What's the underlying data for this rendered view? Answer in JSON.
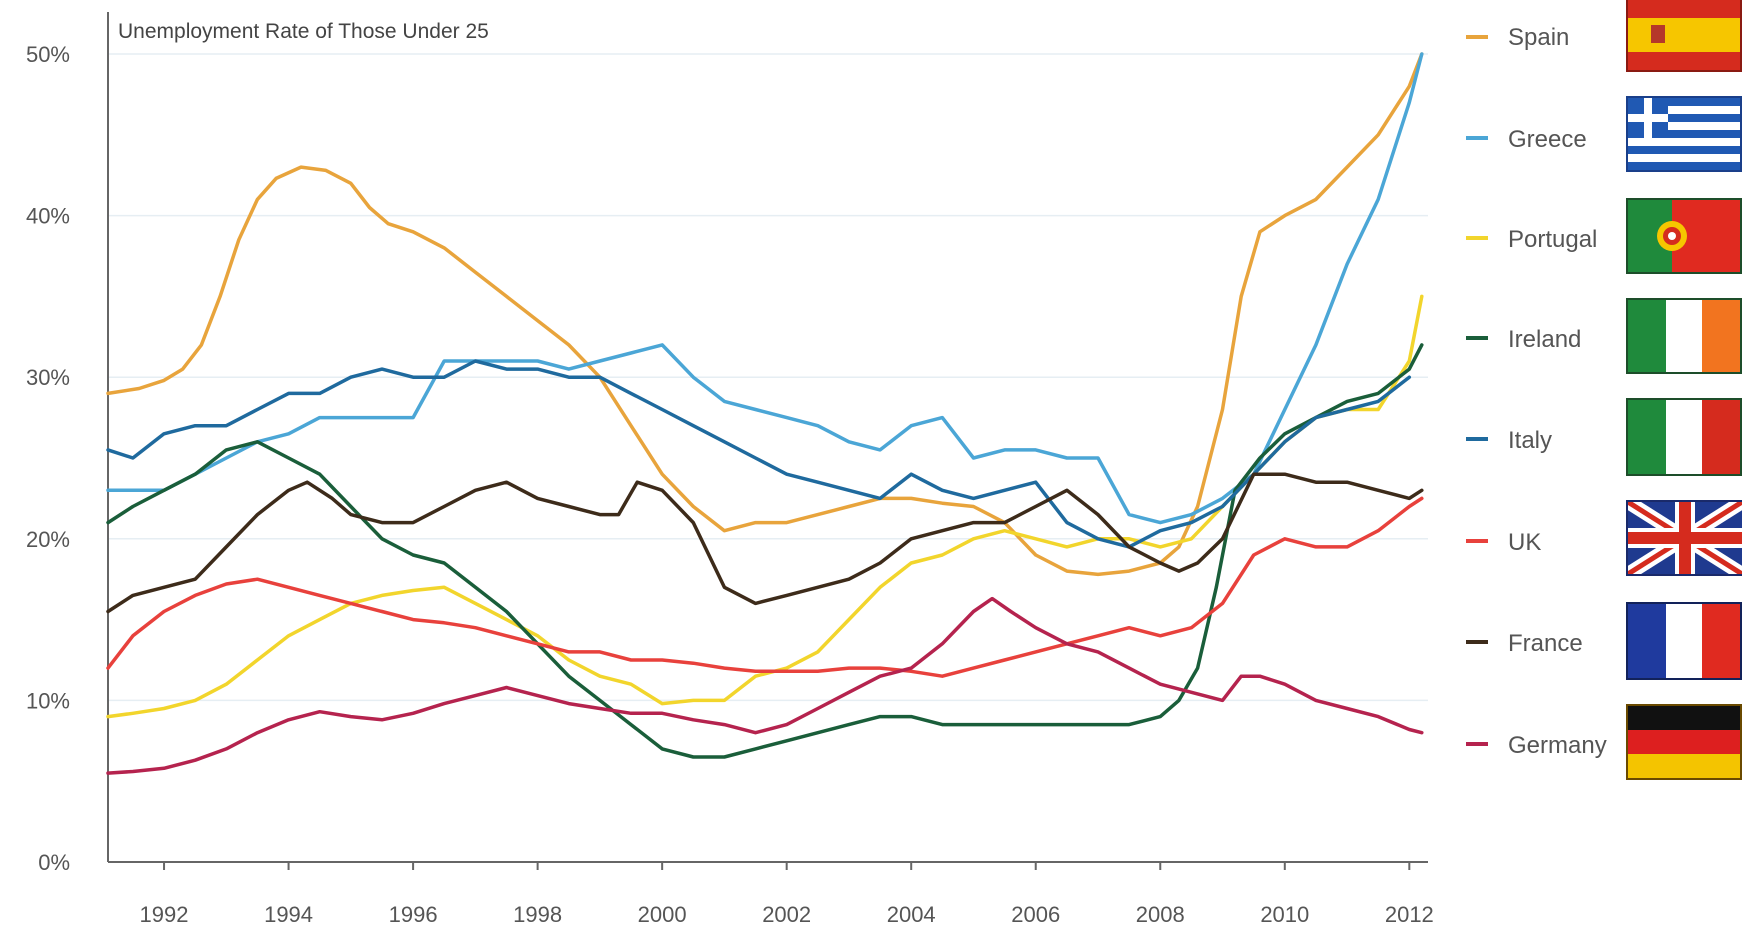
{
  "chart_data": {
    "type": "line",
    "title": "Unemployment Rate of Those Under 25",
    "xlabel": "",
    "ylabel": "",
    "xlim": [
      1991.1,
      2012.3
    ],
    "ylim": [
      0,
      50
    ],
    "y_ticks": [
      "0%",
      "10%",
      "20%",
      "30%",
      "40%",
      "50%"
    ],
    "y_tick_values": [
      0,
      10,
      20,
      30,
      40,
      50
    ],
    "x_ticks": [
      "1992",
      "1994",
      "1996",
      "1998",
      "2000",
      "2002",
      "2004",
      "2006",
      "2008",
      "2010",
      "2012"
    ],
    "x_tick_values": [
      1992,
      1994,
      1996,
      1998,
      2000,
      2002,
      2004,
      2006,
      2008,
      2010,
      2012
    ],
    "grid": "horizontal",
    "legend_position": "right",
    "series": [
      {
        "name": "Spain",
        "color": "#e8a43c",
        "flag": "spain-flag-icon",
        "x": [
          1991.1,
          1991.6,
          1992.0,
          1992.3,
          1992.6,
          1992.9,
          1993.2,
          1993.5,
          1993.8,
          1994.2,
          1994.6,
          1995.0,
          1995.3,
          1995.6,
          1996.0,
          1996.5,
          1997.0,
          1997.5,
          1998.0,
          1998.5,
          1999.0,
          1999.5,
          2000.0,
          2000.5,
          2001.0,
          2001.5,
          2002.0,
          2002.5,
          2003.0,
          2003.5,
          2004.0,
          2004.5,
          2005.0,
          2005.5,
          2006.0,
          2006.5,
          2007.0,
          2007.5,
          2008.0,
          2008.3,
          2008.6,
          2009.0,
          2009.3,
          2009.6,
          2010.0,
          2010.5,
          2011.0,
          2011.5,
          2012.0,
          2012.2
        ],
        "y": [
          29,
          29.3,
          29.8,
          30.5,
          32,
          35,
          38.5,
          41,
          42.3,
          43,
          42.8,
          42,
          40.5,
          39.5,
          39,
          38,
          36.5,
          35,
          33.5,
          32,
          30,
          27,
          24,
          22,
          20.5,
          21,
          21,
          21.5,
          22,
          22.5,
          22.5,
          22.2,
          22,
          21,
          19,
          18,
          17.8,
          18,
          18.5,
          19.5,
          22,
          28,
          35,
          39,
          40,
          41,
          43,
          45,
          48,
          50
        ]
      },
      {
        "name": "Greece",
        "color": "#4ba6d6",
        "flag": "greece-flag-icon",
        "x": [
          1991.1,
          1991.6,
          1992.0,
          1992.5,
          1993.0,
          1993.5,
          1994.0,
          1994.5,
          1995.0,
          1995.5,
          1996.0,
          1996.5,
          1997.0,
          1997.5,
          1998.0,
          1998.5,
          1999.0,
          1999.5,
          2000.0,
          2000.5,
          2001.0,
          2001.5,
          2002.0,
          2002.5,
          2003.0,
          2003.5,
          2004.0,
          2004.5,
          2005.0,
          2005.5,
          2006.0,
          2006.5,
          2007.0,
          2007.5,
          2008.0,
          2008.5,
          2009.0,
          2009.5,
          2010.0,
          2010.5,
          2011.0,
          2011.5,
          2012.0,
          2012.2
        ],
        "y": [
          23,
          23,
          23,
          24,
          25,
          26,
          26.5,
          27.5,
          27.5,
          27.5,
          27.5,
          31,
          31,
          31,
          31,
          30.5,
          31,
          31.5,
          32,
          30,
          28.5,
          28,
          27.5,
          27,
          26,
          25.5,
          27,
          27.5,
          25,
          25.5,
          25.5,
          25,
          25,
          21.5,
          21,
          21.5,
          22.5,
          24,
          28,
          32,
          37,
          41,
          47,
          50
        ]
      },
      {
        "name": "Portugal",
        "color": "#f2d52c",
        "flag": "portugal-flag-icon",
        "x": [
          1991.1,
          1991.5,
          1992.0,
          1992.5,
          1993.0,
          1993.5,
          1994.0,
          1994.5,
          1995.0,
          1995.5,
          1996.0,
          1996.5,
          1997.0,
          1997.5,
          1998.0,
          1998.5,
          1999.0,
          1999.5,
          2000.0,
          2000.5,
          2001.0,
          2001.5,
          2002.0,
          2002.5,
          2003.0,
          2003.5,
          2004.0,
          2004.5,
          2005.0,
          2005.5,
          2006.0,
          2006.5,
          2007.0,
          2007.5,
          2008.0,
          2008.5,
          2009.0,
          2009.5,
          2010.0,
          2010.5,
          2011.0,
          2011.5,
          2012.0,
          2012.2
        ],
        "y": [
          9,
          9.2,
          9.5,
          10,
          11,
          12.5,
          14,
          15,
          16,
          16.5,
          16.8,
          17,
          16,
          15,
          14,
          12.5,
          11.5,
          11,
          9.8,
          10,
          10,
          11.5,
          12,
          13,
          15,
          17,
          18.5,
          19,
          20,
          20.5,
          20,
          19.5,
          20,
          20,
          19.5,
          20,
          22,
          24,
          26,
          27.5,
          28,
          28,
          31,
          35
        ]
      },
      {
        "name": "Ireland",
        "color": "#1a5e3a",
        "flag": "ireland-flag-icon",
        "x": [
          1991.1,
          1991.5,
          1992.0,
          1992.5,
          1993.0,
          1993.5,
          1994.0,
          1994.5,
          1995.0,
          1995.5,
          1996.0,
          1996.5,
          1997.0,
          1997.5,
          1998.0,
          1998.5,
          1999.0,
          1999.5,
          2000.0,
          2000.5,
          2001.0,
          2001.5,
          2002.0,
          2002.5,
          2003.0,
          2003.5,
          2004.0,
          2004.5,
          2005.0,
          2005.5,
          2006.0,
          2006.5,
          2007.0,
          2007.5,
          2008.0,
          2008.3,
          2008.6,
          2008.9,
          2009.2,
          2009.6,
          2010.0,
          2010.5,
          2011.0,
          2011.5,
          2012.0,
          2012.2
        ],
        "y": [
          21,
          22,
          23,
          24,
          25.5,
          26,
          25,
          24,
          22,
          20,
          19,
          18.5,
          17,
          15.5,
          13.5,
          11.5,
          10,
          8.5,
          7,
          6.5,
          6.5,
          7,
          7.5,
          8,
          8.5,
          9,
          9,
          8.5,
          8.5,
          8.5,
          8.5,
          8.5,
          8.5,
          8.5,
          9,
          10,
          12,
          17,
          23,
          25,
          26.5,
          27.5,
          28.5,
          29,
          30.5,
          32
        ]
      },
      {
        "name": "Italy",
        "color": "#1f6a9e",
        "flag": "italy-flag-icon",
        "x": [
          1991.1,
          1991.5,
          1992.0,
          1992.5,
          1993.0,
          1993.5,
          1994.0,
          1994.5,
          1995.0,
          1995.5,
          1996.0,
          1996.5,
          1997.0,
          1997.5,
          1998.0,
          1998.5,
          1999.0,
          1999.5,
          2000.0,
          2000.5,
          2001.0,
          2001.5,
          2002.0,
          2002.5,
          2003.0,
          2003.5,
          2004.0,
          2004.5,
          2005.0,
          2005.5,
          2006.0,
          2006.5,
          2007.0,
          2007.5,
          2008.0,
          2008.5,
          2009.0,
          2009.5,
          2010.0,
          2010.5,
          2011.0,
          2011.5,
          2012.0
        ],
        "y": [
          25.5,
          25,
          26.5,
          27,
          27,
          28,
          29,
          29,
          30,
          30.5,
          30,
          30,
          31,
          30.5,
          30.5,
          30,
          30,
          29,
          28,
          27,
          26,
          25,
          24,
          23.5,
          23,
          22.5,
          24,
          23,
          22.5,
          23,
          23.5,
          21,
          20,
          19.5,
          20.5,
          21,
          22,
          24,
          26,
          27.5,
          28,
          28.5,
          30
        ]
      },
      {
        "name": "UK",
        "color": "#e8413c",
        "flag": "uk-flag-icon",
        "x": [
          1991.1,
          1991.5,
          1992.0,
          1992.5,
          1993.0,
          1993.5,
          1994.0,
          1994.5,
          1995.0,
          1995.5,
          1996.0,
          1996.5,
          1997.0,
          1997.5,
          1998.0,
          1998.5,
          1999.0,
          1999.5,
          2000.0,
          2000.5,
          2001.0,
          2001.5,
          2002.0,
          2002.5,
          2003.0,
          2003.5,
          2004.0,
          2004.5,
          2005.0,
          2005.5,
          2006.0,
          2006.5,
          2007.0,
          2007.5,
          2008.0,
          2008.5,
          2009.0,
          2009.5,
          2010.0,
          2010.5,
          2011.0,
          2011.5,
          2012.0,
          2012.2
        ],
        "y": [
          12,
          14,
          15.5,
          16.5,
          17.2,
          17.5,
          17,
          16.5,
          16,
          15.5,
          15,
          14.8,
          14.5,
          14,
          13.5,
          13,
          13,
          12.5,
          12.5,
          12.3,
          12,
          11.8,
          11.8,
          11.8,
          12,
          12,
          11.8,
          11.5,
          12,
          12.5,
          13,
          13.5,
          14,
          14.5,
          14,
          14.5,
          16,
          19,
          20,
          19.5,
          19.5,
          20.5,
          22,
          22.5
        ]
      },
      {
        "name": "France",
        "color": "#3d2b1a",
        "flag": "france-flag-icon",
        "x": [
          1991.1,
          1991.5,
          1992.0,
          1992.5,
          1993.0,
          1993.5,
          1994.0,
          1994.3,
          1994.7,
          1995.0,
          1995.5,
          1996.0,
          1996.5,
          1997.0,
          1997.5,
          1998.0,
          1998.5,
          1999.0,
          1999.3,
          1999.6,
          2000.0,
          2000.5,
          2001.0,
          2001.5,
          2002.0,
          2002.5,
          2003.0,
          2003.5,
          2004.0,
          2004.5,
          2005.0,
          2005.5,
          2006.0,
          2006.5,
          2007.0,
          2007.5,
          2008.0,
          2008.3,
          2008.6,
          2009.0,
          2009.5,
          2010.0,
          2010.5,
          2011.0,
          2011.5,
          2012.0,
          2012.2
        ],
        "y": [
          15.5,
          16.5,
          17,
          17.5,
          19.5,
          21.5,
          23,
          23.5,
          22.5,
          21.5,
          21,
          21,
          22,
          23,
          23.5,
          22.5,
          22,
          21.5,
          21.5,
          23.5,
          23,
          21,
          17,
          16,
          16.5,
          17,
          17.5,
          18.5,
          20,
          20.5,
          21,
          21,
          22,
          23,
          21.5,
          19.5,
          18.5,
          18,
          18.5,
          20,
          24,
          24,
          23.5,
          23.5,
          23,
          22.5,
          23
        ]
      },
      {
        "name": "Germany",
        "color": "#b5234e",
        "flag": "germany-flag-icon",
        "x": [
          1991.1,
          1991.5,
          1992.0,
          1992.5,
          1993.0,
          1993.5,
          1994.0,
          1994.5,
          1995.0,
          1995.5,
          1996.0,
          1996.5,
          1997.0,
          1997.5,
          1998.0,
          1998.5,
          1999.0,
          1999.5,
          2000.0,
          2000.5,
          2001.0,
          2001.5,
          2002.0,
          2002.5,
          2003.0,
          2003.5,
          2004.0,
          2004.5,
          2005.0,
          2005.3,
          2005.6,
          2006.0,
          2006.5,
          2007.0,
          2007.5,
          2008.0,
          2008.5,
          2009.0,
          2009.3,
          2009.6,
          2010.0,
          2010.5,
          2011.0,
          2011.5,
          2012.0,
          2012.2
        ],
        "y": [
          5.5,
          5.6,
          5.8,
          6.3,
          7,
          8,
          8.8,
          9.3,
          9,
          8.8,
          9.2,
          9.8,
          10.3,
          10.8,
          10.3,
          9.8,
          9.5,
          9.2,
          9.2,
          8.8,
          8.5,
          8,
          8.5,
          9.5,
          10.5,
          11.5,
          12,
          13.5,
          15.5,
          16.3,
          15.5,
          14.5,
          13.5,
          13,
          12,
          11,
          10.5,
          10,
          11.5,
          11.5,
          11,
          10,
          9.5,
          9,
          8.2,
          8
        ]
      }
    ]
  }
}
